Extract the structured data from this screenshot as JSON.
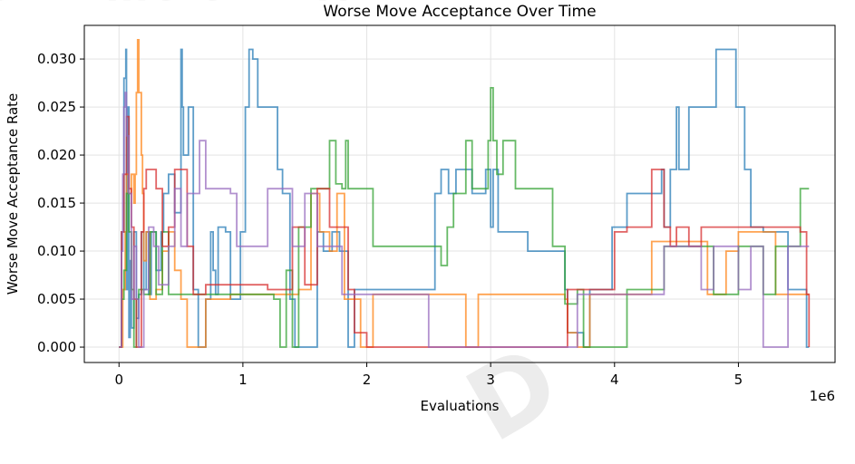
{
  "watermark": {
    "top_text": "s-A Different Plot.",
    "bottom_text": "D"
  },
  "chart_data": {
    "type": "line",
    "title": "Worse Move Acceptance Over Time",
    "xlabel": "Evaluations",
    "ylabel": "Worse Move Acceptance Rate",
    "x_offset_label": "1e6",
    "xlim": [
      -0.28,
      5.78
    ],
    "ylim": [
      -0.0016,
      0.0335
    ],
    "x_ticks": [
      0,
      1,
      2,
      3,
      4,
      5
    ],
    "y_ticks": [
      0.0,
      0.005,
      0.01,
      0.015,
      0.02,
      0.025,
      0.03
    ],
    "y_tick_labels": [
      "0.000",
      "0.005",
      "0.010",
      "0.015",
      "0.020",
      "0.025",
      "0.030"
    ],
    "grid": true,
    "series": [
      {
        "color": "#1f77b4",
        "x": [
          0.0,
          0.02,
          0.04,
          0.055,
          0.06,
          0.07,
          0.08,
          0.09,
          0.1,
          0.12,
          0.14,
          0.16,
          0.18,
          0.2,
          0.22,
          0.24,
          0.26,
          0.3,
          0.34,
          0.36,
          0.4,
          0.45,
          0.5,
          0.51,
          0.52,
          0.56,
          0.6,
          0.64,
          0.7,
          0.74,
          0.76,
          0.78,
          0.8,
          0.86,
          0.9,
          0.98,
          1.02,
          1.05,
          1.08,
          1.12,
          1.2,
          1.28,
          1.32,
          1.38,
          1.42,
          1.55,
          1.6,
          1.65,
          1.72,
          1.78,
          1.85,
          1.9,
          2.0,
          2.2,
          2.4,
          2.55,
          2.6,
          2.66,
          2.72,
          2.78,
          2.85,
          2.96,
          3.0,
          3.02,
          3.06,
          3.1,
          3.2,
          3.3,
          3.5,
          3.6,
          3.62,
          3.75,
          3.8,
          3.9,
          3.98,
          4.05,
          4.1,
          4.2,
          4.3,
          4.38,
          4.4,
          4.45,
          4.5,
          4.52,
          4.6,
          4.7,
          4.82,
          4.9,
          4.98,
          5.05,
          5.1,
          5.2,
          5.3,
          5.4,
          5.5,
          5.55,
          5.57
        ],
        "y": [
          0.0,
          0.012,
          0.028,
          0.031,
          0.006,
          0.025,
          0.001,
          0.009,
          0.002,
          0.012,
          0.003,
          0.0055,
          0.012,
          0.006,
          0.012,
          0.0055,
          0.012,
          0.008,
          0.012,
          0.016,
          0.018,
          0.014,
          0.031,
          0.025,
          0.02,
          0.025,
          0.006,
          0.0,
          0.005,
          0.012,
          0.008,
          0.0055,
          0.0125,
          0.012,
          0.005,
          0.012,
          0.025,
          0.031,
          0.03,
          0.025,
          0.025,
          0.0185,
          0.016,
          0.005,
          0.0,
          0.0,
          0.012,
          0.01,
          0.012,
          0.01,
          0.0,
          0.006,
          0.006,
          0.006,
          0.006,
          0.016,
          0.0185,
          0.016,
          0.0185,
          0.0185,
          0.016,
          0.0185,
          0.0125,
          0.0185,
          0.012,
          0.012,
          0.012,
          0.01,
          0.01,
          0.006,
          0.0015,
          0.0,
          0.006,
          0.006,
          0.0125,
          0.0125,
          0.016,
          0.016,
          0.016,
          0.0185,
          0.0125,
          0.0185,
          0.025,
          0.0185,
          0.025,
          0.025,
          0.031,
          0.031,
          0.025,
          0.0185,
          0.0125,
          0.012,
          0.012,
          0.006,
          0.006,
          0.0,
          0.0
        ]
      },
      {
        "color": "#ff7f0e",
        "x": [
          0.0,
          0.03,
          0.05,
          0.06,
          0.08,
          0.1,
          0.12,
          0.13,
          0.14,
          0.15,
          0.16,
          0.18,
          0.19,
          0.2,
          0.22,
          0.25,
          0.3,
          0.35,
          0.4,
          0.45,
          0.5,
          0.55,
          0.6,
          0.65,
          0.7,
          0.8,
          0.9,
          1.0,
          1.1,
          1.2,
          1.3,
          1.45,
          1.55,
          1.62,
          1.7,
          1.76,
          1.82,
          1.95,
          2.05,
          2.2,
          2.5,
          2.8,
          2.9,
          3.1,
          3.3,
          3.5,
          3.6,
          3.62,
          3.7,
          3.76,
          3.8,
          4.0,
          4.2,
          4.3,
          4.45,
          4.6,
          4.75,
          4.9,
          5.0,
          5.1,
          5.2,
          5.3,
          5.5,
          5.57
        ],
        "y": [
          0.0,
          0.006,
          0.012,
          0.018,
          0.016,
          0.018,
          0.015,
          0.018,
          0.0265,
          0.032,
          0.0265,
          0.02,
          0.016,
          0.009,
          0.012,
          0.005,
          0.006,
          0.01,
          0.012,
          0.008,
          0.005,
          0.0,
          0.0,
          0.0,
          0.005,
          0.005,
          0.0055,
          0.0055,
          0.0055,
          0.0055,
          0.0055,
          0.006,
          0.016,
          0.012,
          0.01,
          0.016,
          0.005,
          0.0,
          0.0055,
          0.0055,
          0.0055,
          0.0,
          0.0055,
          0.0055,
          0.0055,
          0.0055,
          0.005,
          0.0015,
          0.0,
          0.0,
          0.0055,
          0.0055,
          0.0055,
          0.011,
          0.011,
          0.011,
          0.0055,
          0.01,
          0.012,
          0.012,
          0.012,
          0.0055,
          0.0055,
          0.0055
        ]
      },
      {
        "color": "#2ca02c",
        "x": [
          0.0,
          0.02,
          0.04,
          0.06,
          0.08,
          0.1,
          0.12,
          0.14,
          0.16,
          0.2,
          0.25,
          0.3,
          0.35,
          0.4,
          0.45,
          0.5,
          0.6,
          0.7,
          0.8,
          0.9,
          1.0,
          1.1,
          1.2,
          1.25,
          1.3,
          1.35,
          1.4,
          1.45,
          1.55,
          1.6,
          1.7,
          1.75,
          1.8,
          1.83,
          1.85,
          1.9,
          2.0,
          2.05,
          2.2,
          2.4,
          2.6,
          2.65,
          2.7,
          2.8,
          2.85,
          2.95,
          2.98,
          3.0,
          3.02,
          3.05,
          3.1,
          3.15,
          3.2,
          3.3,
          3.4,
          3.5,
          3.55,
          3.6,
          3.65,
          3.7,
          3.75,
          3.8,
          3.9,
          4.0,
          4.1,
          4.2,
          4.3,
          4.4,
          4.5,
          4.6,
          4.7,
          4.8,
          4.9,
          5.0,
          5.1,
          5.2,
          5.3,
          5.4,
          5.5,
          5.57
        ],
        "y": [
          0.0,
          0.005,
          0.008,
          0.016,
          0.012,
          0.006,
          0.0,
          0.005,
          0.006,
          0.0055,
          0.012,
          0.0055,
          0.012,
          0.0055,
          0.0055,
          0.0055,
          0.0055,
          0.0055,
          0.0055,
          0.0055,
          0.0055,
          0.0055,
          0.0055,
          0.005,
          0.0,
          0.008,
          0.0,
          0.0125,
          0.0165,
          0.0165,
          0.0215,
          0.017,
          0.0165,
          0.0215,
          0.0165,
          0.0165,
          0.0165,
          0.0105,
          0.0105,
          0.0105,
          0.0085,
          0.0125,
          0.016,
          0.0215,
          0.0165,
          0.0165,
          0.0215,
          0.027,
          0.0215,
          0.018,
          0.0215,
          0.0215,
          0.0165,
          0.0165,
          0.0165,
          0.0105,
          0.0105,
          0.0045,
          0.0045,
          0.006,
          0.0,
          0.0,
          0.0,
          0.0,
          0.006,
          0.006,
          0.006,
          0.0105,
          0.0105,
          0.0105,
          0.0105,
          0.0055,
          0.0055,
          0.0105,
          0.0105,
          0.0055,
          0.0105,
          0.0105,
          0.0165,
          0.0165
        ]
      },
      {
        "color": "#d62728",
        "x": [
          0.0,
          0.02,
          0.04,
          0.06,
          0.08,
          0.1,
          0.12,
          0.14,
          0.16,
          0.18,
          0.2,
          0.22,
          0.25,
          0.3,
          0.35,
          0.4,
          0.45,
          0.5,
          0.55,
          0.6,
          0.7,
          0.8,
          0.9,
          1.0,
          1.1,
          1.15,
          1.2,
          1.3,
          1.4,
          1.5,
          1.6,
          1.7,
          1.8,
          1.85,
          1.9,
          2.0,
          2.2,
          2.4,
          2.6,
          2.8,
          3.0,
          3.2,
          3.4,
          3.55,
          3.62,
          3.7,
          3.8,
          3.9,
          4.0,
          4.05,
          4.1,
          4.2,
          4.3,
          4.4,
          4.45,
          4.5,
          4.6,
          4.7,
          4.8,
          4.9,
          5.0,
          5.1,
          5.2,
          5.3,
          5.4,
          5.5,
          5.55,
          5.57
        ],
        "y": [
          0.0,
          0.012,
          0.018,
          0.024,
          0.0165,
          0.0125,
          0.005,
          0.0,
          0.0,
          0.012,
          0.0165,
          0.0185,
          0.0185,
          0.0165,
          0.0105,
          0.0125,
          0.0185,
          0.0185,
          0.0105,
          0.0055,
          0.0065,
          0.0065,
          0.0065,
          0.0065,
          0.0065,
          0.0065,
          0.006,
          0.006,
          0.0125,
          0.0065,
          0.0165,
          0.0125,
          0.0125,
          0.006,
          0.0015,
          0.0,
          0.0,
          0.0,
          0.0,
          0.0,
          0.0,
          0.0,
          0.0,
          0.0,
          0.006,
          0.006,
          0.006,
          0.006,
          0.012,
          0.012,
          0.0125,
          0.0125,
          0.0185,
          0.0125,
          0.0105,
          0.0125,
          0.0105,
          0.0125,
          0.0125,
          0.0125,
          0.0125,
          0.0125,
          0.0125,
          0.0125,
          0.0125,
          0.012,
          0.0055,
          0.0
        ]
      },
      {
        "color": "#9467bd",
        "x": [
          0.0,
          0.02,
          0.03,
          0.04,
          0.05,
          0.06,
          0.08,
          0.1,
          0.12,
          0.14,
          0.16,
          0.2,
          0.24,
          0.28,
          0.32,
          0.4,
          0.45,
          0.5,
          0.55,
          0.6,
          0.65,
          0.7,
          0.75,
          0.8,
          0.9,
          0.95,
          1.0,
          1.1,
          1.2,
          1.3,
          1.4,
          1.5,
          1.6,
          1.7,
          1.8,
          1.9,
          2.0,
          2.1,
          2.2,
          2.3,
          2.5,
          2.6,
          2.8,
          3.0,
          3.2,
          3.4,
          3.6,
          3.7,
          3.8,
          3.9,
          4.0,
          4.1,
          4.2,
          4.3,
          4.4,
          4.5,
          4.6,
          4.7,
          4.8,
          4.9,
          5.0,
          5.1,
          5.2,
          5.3,
          5.4,
          5.5,
          5.57
        ],
        "y": [
          0.0,
          0.01,
          0.018,
          0.025,
          0.0265,
          0.022,
          0.016,
          0.005,
          0.0105,
          0.005,
          0.0,
          0.006,
          0.0125,
          0.0105,
          0.0065,
          0.0105,
          0.0165,
          0.0105,
          0.016,
          0.016,
          0.0215,
          0.0165,
          0.0165,
          0.0165,
          0.016,
          0.0105,
          0.0105,
          0.0105,
          0.0165,
          0.0165,
          0.0105,
          0.016,
          0.0105,
          0.0105,
          0.0055,
          0.0055,
          0.0055,
          0.0055,
          0.0055,
          0.0055,
          0.0,
          0.0,
          0.0,
          0.0,
          0.0,
          0.0,
          0.0,
          0.0055,
          0.0055,
          0.0055,
          0.0055,
          0.0055,
          0.0055,
          0.0055,
          0.0105,
          0.0105,
          0.0105,
          0.006,
          0.0105,
          0.0105,
          0.006,
          0.0105,
          0.0,
          0.0,
          0.0105,
          0.0105,
          0.0105
        ]
      }
    ]
  }
}
